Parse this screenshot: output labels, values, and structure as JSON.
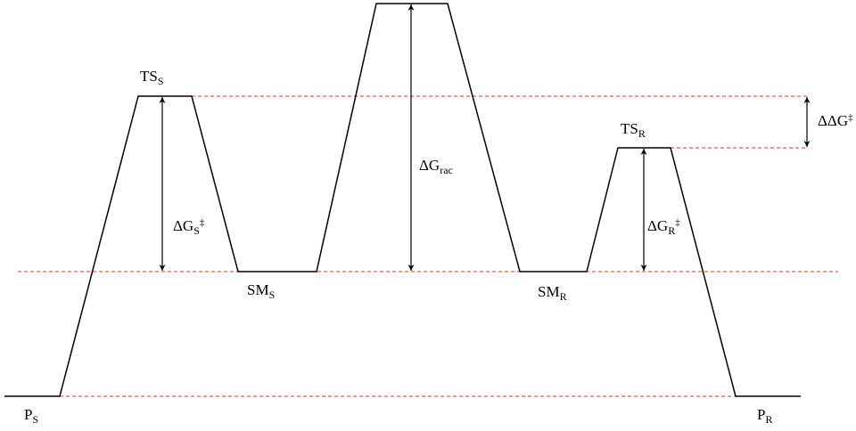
{
  "colors": {
    "profile": "#000000",
    "reference_lines": "#e8302a"
  },
  "labels": {
    "ts_s": {
      "main": "TS",
      "sub": "S"
    },
    "ts_r": {
      "main": "TS",
      "sub": "R"
    },
    "sm_s": {
      "main": "SM",
      "sub": "S"
    },
    "sm_r": {
      "main": "SM",
      "sub": "R"
    },
    "p_s": {
      "main": "P",
      "sub": "S"
    },
    "p_r": {
      "main": "P",
      "sub": "R"
    },
    "dg_s": {
      "main": "ΔG",
      "sub": "S",
      "sup": "‡"
    },
    "dg_r": {
      "main": "ΔG",
      "sub": "R",
      "sup": "‡"
    },
    "dg_rac": {
      "main": "ΔG",
      "sub": "rac"
    },
    "ddg": {
      "main": "ΔΔG",
      "sup": "‡"
    }
  }
}
